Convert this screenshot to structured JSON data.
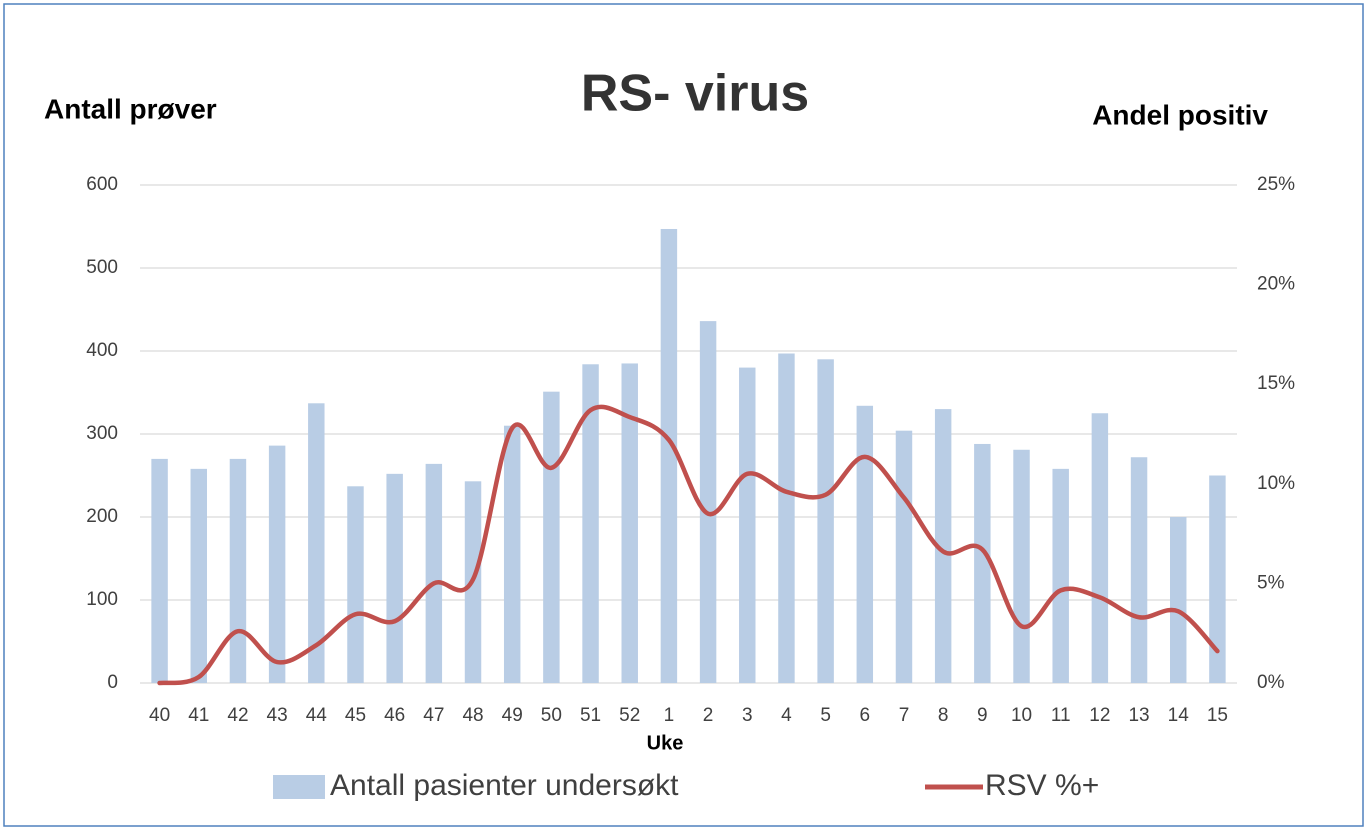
{
  "chart_data": {
    "type": "bar-line",
    "title": "RS- virus",
    "y_axis_label": "Antall prøver",
    "y2_axis_label": "Andel positiv",
    "x_axis_label": "Uke",
    "categories": [
      "40",
      "41",
      "42",
      "43",
      "44",
      "45",
      "46",
      "47",
      "48",
      "49",
      "50",
      "51",
      "52",
      "1",
      "2",
      "3",
      "4",
      "5",
      "6",
      "7",
      "8",
      "9",
      "10",
      "11",
      "12",
      "13",
      "14",
      "15"
    ],
    "series": [
      {
        "name": "Antall pasienter undersøkt",
        "type": "bar",
        "color": "#b9cde5",
        "values": [
          270,
          258,
          270,
          286,
          337,
          237,
          252,
          264,
          243,
          310,
          351,
          384,
          385,
          547,
          436,
          380,
          397,
          390,
          334,
          304,
          330,
          288,
          281,
          258,
          325,
          272,
          200,
          250
        ]
      },
      {
        "name": "RSV %+",
        "type": "line",
        "axis": "y2",
        "color": "#c0504d",
        "smooth": true,
        "values": [
          0,
          0.3,
          2.6,
          1.05,
          1.9,
          3.45,
          3.1,
          5.0,
          5.2,
          12.8,
          10.8,
          13.7,
          13.35,
          12.2,
          8.5,
          10.5,
          9.6,
          9.45,
          11.35,
          9.3,
          6.6,
          6.7,
          2.85,
          4.65,
          4.3,
          3.3,
          3.6,
          1.6
        ]
      }
    ],
    "ylim": [
      0,
      600
    ],
    "yticks": [
      0,
      100,
      200,
      300,
      400,
      500,
      600
    ],
    "y2lim": [
      0,
      25
    ],
    "y2ticks": [
      {
        "value": 0,
        "label": "0%"
      },
      {
        "value": 5,
        "label": "5%"
      },
      {
        "value": 10,
        "label": "10%"
      },
      {
        "value": 15,
        "label": "15%"
      },
      {
        "value": 20,
        "label": "20%"
      },
      {
        "value": 25,
        "label": "25%"
      }
    ],
    "grid": true,
    "legend": "bottom"
  }
}
